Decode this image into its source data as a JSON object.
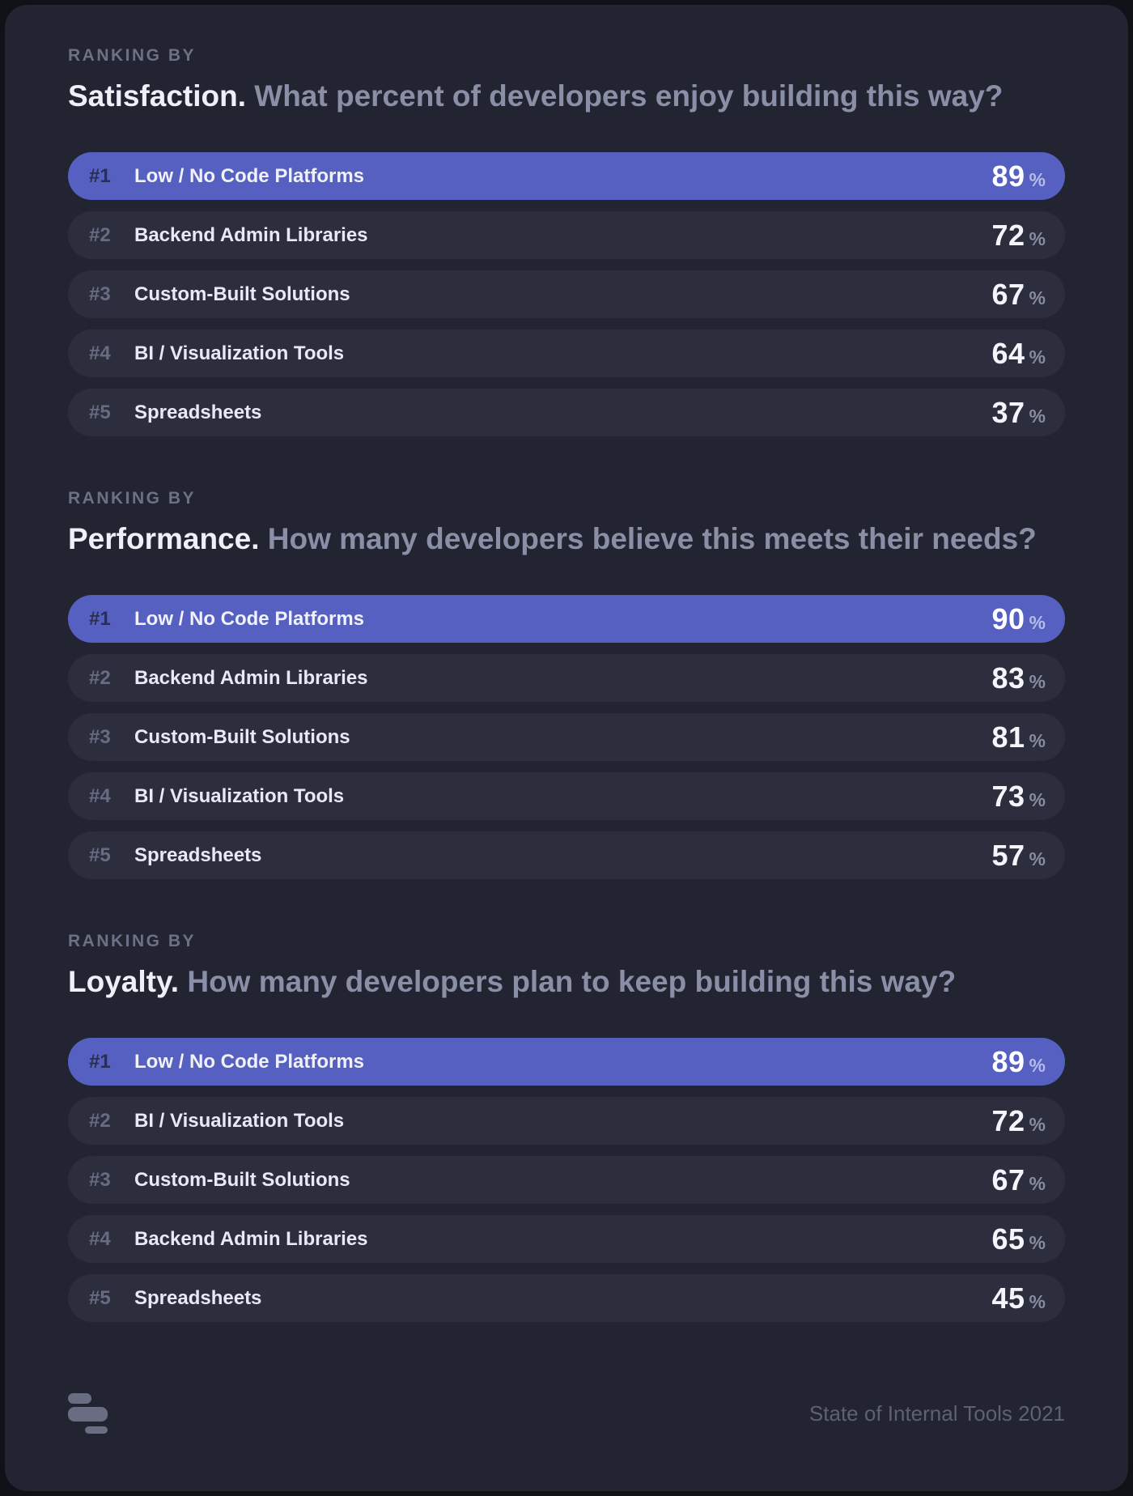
{
  "sections": [
    {
      "eyebrow": "RANKING BY",
      "title": "Satisfaction.",
      "question": "What percent of developers enjoy building this way?",
      "rows": [
        {
          "rank": "#1",
          "label": "Low / No Code Platforms",
          "value": "89",
          "unit": "%"
        },
        {
          "rank": "#2",
          "label": "Backend Admin Libraries",
          "value": "72",
          "unit": "%"
        },
        {
          "rank": "#3",
          "label": "Custom-Built Solutions",
          "value": "67",
          "unit": "%"
        },
        {
          "rank": "#4",
          "label": "BI / Visualization Tools",
          "value": "64",
          "unit": "%"
        },
        {
          "rank": "#5",
          "label": "Spreadsheets",
          "value": "37",
          "unit": "%"
        }
      ]
    },
    {
      "eyebrow": "RANKING BY",
      "title": "Performance.",
      "question": "How many developers believe this meets their needs?",
      "rows": [
        {
          "rank": "#1",
          "label": "Low / No Code Platforms",
          "value": "90",
          "unit": "%"
        },
        {
          "rank": "#2",
          "label": "Backend Admin Libraries",
          "value": "83",
          "unit": "%"
        },
        {
          "rank": "#3",
          "label": "Custom-Built Solutions",
          "value": "81",
          "unit": "%"
        },
        {
          "rank": "#4",
          "label": "BI / Visualization Tools",
          "value": "73",
          "unit": "%"
        },
        {
          "rank": "#5",
          "label": "Spreadsheets",
          "value": "57",
          "unit": "%"
        }
      ]
    },
    {
      "eyebrow": "RANKING BY",
      "title": "Loyalty.",
      "question": "How many developers plan to keep building this way?",
      "rows": [
        {
          "rank": "#1",
          "label": "Low / No Code Platforms",
          "value": "89",
          "unit": "%"
        },
        {
          "rank": "#2",
          "label": "BI / Visualization Tools",
          "value": "72",
          "unit": "%"
        },
        {
          "rank": "#3",
          "label": "Custom-Built Solutions",
          "value": "67",
          "unit": "%"
        },
        {
          "rank": "#4",
          "label": "Backend Admin Libraries",
          "value": "65",
          "unit": "%"
        },
        {
          "rank": "#5",
          "label": "Spreadsheets",
          "value": "45",
          "unit": "%"
        }
      ]
    }
  ],
  "footer": {
    "source": "State of Internal Tools 2021",
    "logo": "retool-logo"
  },
  "colors": {
    "background": "#232431",
    "outer_background": "#111218",
    "pill": "#2c2e3e",
    "highlight": "#5560c0",
    "text_primary": "#eef0f8",
    "text_muted": "#898fa6",
    "rank_muted": "#676c83",
    "footer_text": "#5c6175"
  },
  "chart_data": [
    {
      "type": "bar",
      "title": "Ranking by Satisfaction",
      "subtitle": "What percent of developers enjoy building this way?",
      "categories": [
        "Low / No Code Platforms",
        "Backend Admin Libraries",
        "Custom-Built Solutions",
        "BI / Visualization Tools",
        "Spreadsheets"
      ],
      "values": [
        89,
        72,
        67,
        64,
        37
      ],
      "unit": "%",
      "highlight_index": 0
    },
    {
      "type": "bar",
      "title": "Ranking by Performance",
      "subtitle": "How many developers believe this meets their needs?",
      "categories": [
        "Low / No Code Platforms",
        "Backend Admin Libraries",
        "Custom-Built Solutions",
        "BI / Visualization Tools",
        "Spreadsheets"
      ],
      "values": [
        90,
        83,
        81,
        73,
        57
      ],
      "unit": "%",
      "highlight_index": 0
    },
    {
      "type": "bar",
      "title": "Ranking by Loyalty",
      "subtitle": "How many developers plan to keep building this way?",
      "categories": [
        "Low / No Code Platforms",
        "BI / Visualization Tools",
        "Custom-Built Solutions",
        "Backend Admin Libraries",
        "Spreadsheets"
      ],
      "values": [
        89,
        72,
        67,
        65,
        45
      ],
      "unit": "%",
      "highlight_index": 0
    }
  ]
}
